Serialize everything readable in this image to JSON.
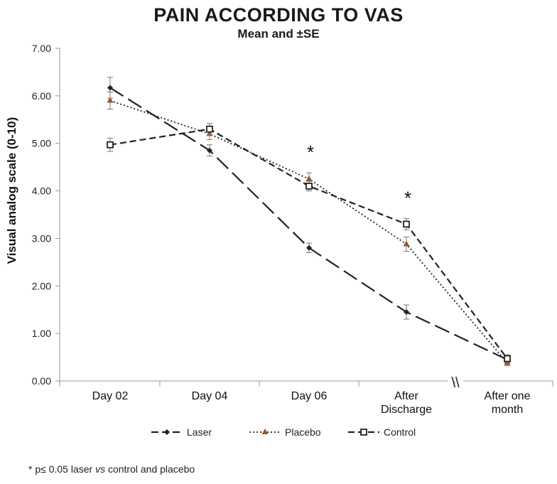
{
  "chart_data": {
    "type": "line",
    "title": "PAIN ACCORDING TO VAS",
    "subtitle": "Mean and ±SE",
    "xlabel": "",
    "ylabel": "Visual analog scale (0-10)",
    "ylim": [
      0,
      7
    ],
    "yticks": [
      "0.00",
      "1.00",
      "2.00",
      "3.00",
      "4.00",
      "5.00",
      "6.00",
      "7.00"
    ],
    "categories": [
      "Day 02",
      "Day 04",
      "Day 06",
      "After Discharge",
      "After one month"
    ],
    "category_lines": [
      [
        "Day 02"
      ],
      [
        "Day 04"
      ],
      [
        "Day 06"
      ],
      [
        "After",
        "Discharge"
      ],
      [
        "After one",
        "month"
      ]
    ],
    "axis_break_symbol": "\\\\",
    "series": [
      {
        "name": "Laser",
        "style": "longdash",
        "marker": "diamond",
        "color": "#222222",
        "values": [
          6.17,
          4.85,
          2.8,
          1.45,
          0.45
        ],
        "se": [
          0.22,
          0.12,
          0.1,
          0.15,
          0.08
        ]
      },
      {
        "name": "Placebo",
        "style": "dotted",
        "marker": "triangle",
        "color": "#222222",
        "marker_color": "#a0522d",
        "values": [
          5.9,
          5.2,
          4.25,
          2.88,
          0.38
        ],
        "se": [
          0.18,
          0.12,
          0.13,
          0.15,
          0.06
        ]
      },
      {
        "name": "Control",
        "style": "dashed",
        "marker": "square",
        "color": "#222222",
        "values": [
          4.97,
          5.3,
          4.1,
          3.3,
          0.47
        ],
        "se": [
          0.14,
          0.12,
          0.1,
          0.12,
          0.08
        ]
      }
    ],
    "significance_markers": [
      {
        "category": "Day 06",
        "label": "*"
      },
      {
        "category": "After Discharge",
        "label": "*"
      }
    ],
    "legend_position": "bottom",
    "grid": false
  },
  "footnote": {
    "prefix": "* p≤ 0.05 laser ",
    "italic": "vs",
    "suffix": " control and placebo"
  }
}
